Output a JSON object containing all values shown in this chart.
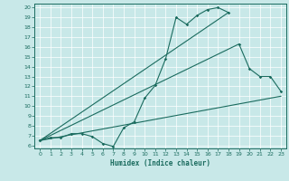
{
  "xlabel": "Humidex (Indice chaleur)",
  "bg_color": "#c8e8e8",
  "line_color": "#1a6b5e",
  "grid_color": "#b0d8d8",
  "xlim": [
    -0.5,
    23.5
  ],
  "ylim": [
    5.7,
    20.4
  ],
  "xticks": [
    0,
    1,
    2,
    3,
    4,
    5,
    6,
    7,
    8,
    9,
    10,
    11,
    12,
    13,
    14,
    15,
    16,
    17,
    18,
    19,
    20,
    21,
    22,
    23
  ],
  "yticks": [
    6,
    7,
    8,
    9,
    10,
    11,
    12,
    13,
    14,
    15,
    16,
    17,
    18,
    19,
    20
  ],
  "curve1_x": [
    0,
    1,
    2,
    3,
    4,
    5,
    6,
    7,
    8,
    9,
    10,
    11,
    12,
    13,
    14,
    15,
    16,
    17,
    18
  ],
  "curve1_y": [
    6.5,
    6.8,
    6.8,
    7.2,
    7.2,
    6.9,
    6.2,
    5.9,
    7.8,
    8.4,
    10.8,
    12.1,
    14.8,
    19.0,
    18.3,
    19.2,
    19.8,
    20.0,
    19.5
  ],
  "curve2_x": [
    0,
    18
  ],
  "curve2_y": [
    6.5,
    19.5
  ],
  "curve3_x": [
    0,
    19,
    20,
    21,
    22,
    23
  ],
  "curve3_y": [
    6.5,
    16.3,
    13.8,
    13.0,
    13.0,
    11.5
  ],
  "curve4_x": [
    0,
    23
  ],
  "curve4_y": [
    6.5,
    11.0
  ]
}
